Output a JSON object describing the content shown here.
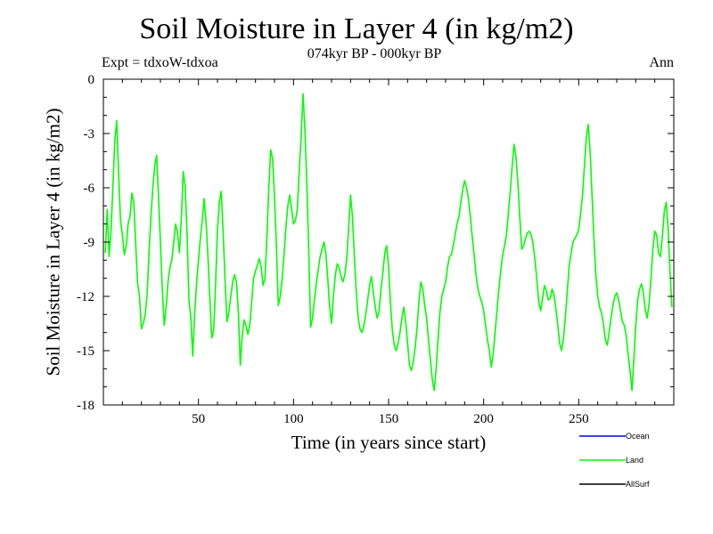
{
  "chart_data": {
    "type": "line",
    "title": "Soil Moisture in Layer 4 (in kg/m2)",
    "subtitle": "074kyr BP - 000kyr BP",
    "experiment": "Expt = tdxoW-tdxoa",
    "period": "Ann",
    "xlabel": "Time (in years since start)",
    "ylabel": "Soil Moisture in Layer 4 (in kg/m2)",
    "xlim": [
      0,
      300
    ],
    "ylim": [
      -18,
      0
    ],
    "xticks": [
      50,
      100,
      150,
      200,
      250
    ],
    "yticks": [
      0,
      -3,
      -6,
      -9,
      -12,
      -15,
      -18
    ],
    "grid": false,
    "legend_position": "bottom-right, below plot",
    "legend": [
      {
        "name": "Ocean",
        "color": "#0000ff"
      },
      {
        "name": "Land",
        "color": "#00ff00"
      },
      {
        "name": "AllSurf",
        "color": "#000000"
      }
    ],
    "series": [
      {
        "name": "Land",
        "color": "#00ff00",
        "x_start": 1,
        "x_step": 1,
        "values": [
          -9.6,
          -7.2,
          -9.8,
          -8.4,
          -6.0,
          -3.4,
          -2.3,
          -5.2,
          -7.8,
          -8.6,
          -9.7,
          -9.2,
          -8.0,
          -7.6,
          -6.3,
          -6.8,
          -9.1,
          -11.3,
          -12.0,
          -13.8,
          -13.5,
          -13.0,
          -11.9,
          -9.6,
          -7.6,
          -6.0,
          -4.8,
          -4.2,
          -6.5,
          -9.0,
          -11.6,
          -13.6,
          -12.6,
          -11.2,
          -10.4,
          -10.0,
          -9.0,
          -8.0,
          -8.5,
          -9.6,
          -7.7,
          -5.1,
          -5.9,
          -8.5,
          -12.2,
          -13.2,
          -15.3,
          -13.0,
          -11.3,
          -10.0,
          -8.8,
          -7.8,
          -6.6,
          -7.9,
          -9.8,
          -12.1,
          -14.3,
          -13.9,
          -11.4,
          -8.3,
          -6.8,
          -6.2,
          -8.5,
          -11.1,
          -13.4,
          -12.9,
          -12.0,
          -11.2,
          -10.8,
          -11.2,
          -12.9,
          -15.8,
          -14.2,
          -13.3,
          -13.6,
          -14.1,
          -13.6,
          -12.3,
          -11.0,
          -10.6,
          -10.3,
          -9.9,
          -10.4,
          -11.4,
          -11.0,
          -8.7,
          -6.0,
          -3.9,
          -4.4,
          -6.5,
          -9.2,
          -12.5,
          -12.0,
          -11.1,
          -9.7,
          -8.2,
          -7.0,
          -6.4,
          -7.2,
          -8.0,
          -7.8,
          -7.2,
          -5.1,
          -3.2,
          -0.8,
          -2.8,
          -5.8,
          -9.4,
          -13.7,
          -13.2,
          -12.2,
          -11.3,
          -10.5,
          -9.8,
          -9.4,
          -9.0,
          -9.6,
          -11.0,
          -12.6,
          -13.5,
          -12.0,
          -10.8,
          -10.2,
          -10.4,
          -10.9,
          -11.2,
          -10.8,
          -9.9,
          -8.2,
          -6.4,
          -7.6,
          -9.8,
          -11.7,
          -13.2,
          -13.8,
          -14.0,
          -13.6,
          -13.0,
          -12.2,
          -11.4,
          -10.9,
          -11.8,
          -12.6,
          -13.2,
          -12.8,
          -11.6,
          -10.7,
          -9.6,
          -9.2,
          -10.4,
          -12.4,
          -13.9,
          -14.7,
          -15.0,
          -14.6,
          -14.0,
          -13.2,
          -12.6,
          -13.4,
          -14.6,
          -15.8,
          -16.1,
          -15.6,
          -14.8,
          -13.7,
          -12.2,
          -11.2,
          -11.6,
          -12.5,
          -13.2,
          -14.4,
          -15.5,
          -16.6,
          -17.2,
          -16.0,
          -14.4,
          -12.9,
          -12.0,
          -11.6,
          -11.2,
          -10.4,
          -9.8,
          -9.7,
          -9.2,
          -8.6,
          -8.0,
          -7.6,
          -6.8,
          -6.1,
          -5.6,
          -6.0,
          -6.6,
          -7.6,
          -8.7,
          -9.7,
          -10.8,
          -11.6,
          -12.0,
          -12.3,
          -12.8,
          -13.6,
          -14.4,
          -15.0,
          -15.9,
          -15.2,
          -14.0,
          -12.8,
          -11.6,
          -10.6,
          -9.7,
          -9.2,
          -8.6,
          -7.4,
          -6.2,
          -4.8,
          -3.6,
          -4.3,
          -5.7,
          -7.6,
          -9.4,
          -9.2,
          -8.8,
          -8.5,
          -8.4,
          -8.6,
          -9.1,
          -10.0,
          -11.1,
          -12.3,
          -12.8,
          -12.1,
          -11.4,
          -11.7,
          -12.2,
          -12.1,
          -11.6,
          -11.9,
          -12.7,
          -13.6,
          -14.6,
          -15.0,
          -14.3,
          -13.1,
          -11.7,
          -10.3,
          -9.6,
          -9.0,
          -8.8,
          -8.6,
          -8.3,
          -7.4,
          -6.4,
          -4.8,
          -3.2,
          -2.5,
          -4.0,
          -6.4,
          -8.8,
          -10.8,
          -12.0,
          -12.6,
          -12.9,
          -13.5,
          -14.4,
          -14.7,
          -14.0,
          -13.2,
          -12.5,
          -12.0,
          -11.8,
          -12.2,
          -12.8,
          -13.4,
          -13.6,
          -14.2,
          -15.2,
          -16.1,
          -17.2,
          -15.5,
          -13.6,
          -12.2,
          -11.6,
          -11.3,
          -11.8,
          -12.7,
          -13.2,
          -12.4,
          -11.0,
          -9.4,
          -8.4,
          -8.6,
          -9.6,
          -9.8,
          -8.7,
          -7.3,
          -6.8,
          -8.2,
          -10.6,
          -12.6
        ]
      }
    ]
  }
}
